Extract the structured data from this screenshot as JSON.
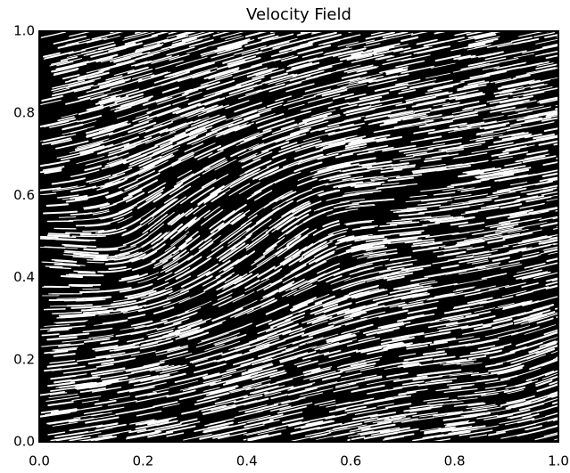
{
  "chart_data": {
    "type": "field",
    "title": "Velocity Field",
    "xlim": [
      0,
      1
    ],
    "ylim": [
      0,
      1
    ],
    "xticks": [
      {
        "value": 0,
        "label": "0.0"
      },
      {
        "value": 0.2,
        "label": "0.2"
      },
      {
        "value": 0.4,
        "label": "0.4"
      },
      {
        "value": 0.6,
        "label": "0.6"
      },
      {
        "value": 0.8,
        "label": "0.8"
      },
      {
        "value": 1,
        "label": "1.0"
      }
    ],
    "yticks": [
      {
        "value": 0,
        "label": "0.0"
      },
      {
        "value": 0.2,
        "label": "0.2"
      },
      {
        "value": 0.4,
        "label": "0.4"
      },
      {
        "value": 0.6,
        "label": "0.6"
      },
      {
        "value": 0.8,
        "label": "0.8"
      },
      {
        "value": 1,
        "label": "1.0"
      }
    ]
  }
}
